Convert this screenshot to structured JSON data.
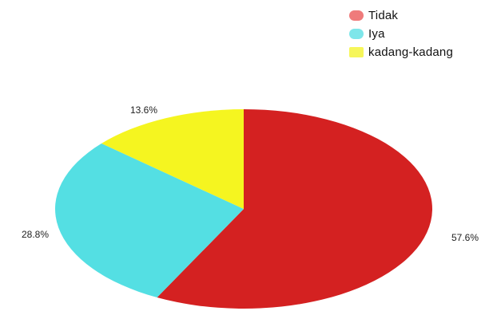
{
  "chart_data": {
    "type": "pie",
    "title": "",
    "categories": [
      "Tidak",
      "Iya",
      "kadang-kadang"
    ],
    "values": [
      57.6,
      28.8,
      13.6
    ],
    "value_labels": [
      "57.6%",
      "28.8%",
      "13.6%"
    ],
    "colors": [
      "#d42121",
      "#54dfe3",
      "#f5f520"
    ],
    "legend_placement": "top-right",
    "legend": [
      {
        "label": "Tidak",
        "color": "#ef7b7b"
      },
      {
        "label": "Iya",
        "color": "#7ee6ea"
      },
      {
        "label": "kadang-kadang",
        "color": "#f6f65a"
      }
    ]
  }
}
